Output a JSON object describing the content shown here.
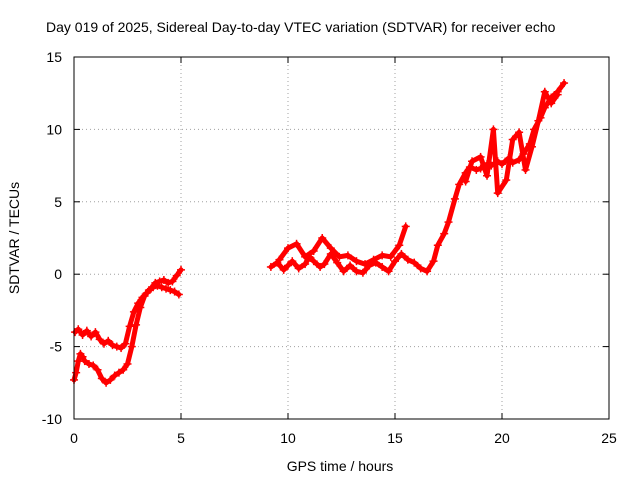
{
  "chart_data": {
    "type": "scatter",
    "title": "Day 019 of 2025, Sidereal Day-to-day VTEC variation (SDTVAR) for receiver echo",
    "xlabel": "GPS time / hours",
    "ylabel": "SDTVAR / TECUs",
    "xlim": [
      0,
      25
    ],
    "ylim": [
      -10,
      15
    ],
    "xticks": [
      0,
      5,
      10,
      15,
      20,
      25
    ],
    "yticks": [
      -10,
      -5,
      0,
      5,
      10,
      15
    ],
    "x_tick_labels": [
      "0",
      "5",
      "10",
      "15",
      "20",
      "25"
    ],
    "y_tick_labels": [
      "-10",
      "-5",
      "0",
      "5",
      "10",
      "15"
    ],
    "grid": true,
    "marker": "+",
    "color": "#ff0000",
    "series": [
      {
        "name": "segment-1-lower",
        "x": [
          0.0,
          0.1,
          0.2,
          0.3,
          0.4,
          0.5,
          0.7,
          0.9,
          1.1,
          1.3,
          1.5,
          1.7,
          1.9,
          2.1,
          2.3,
          2.5,
          2.7,
          2.9,
          3.1,
          3.3,
          3.5,
          3.7,
          3.9,
          4.1,
          4.3,
          4.5,
          4.7,
          4.9
        ],
        "y": [
          -7.3,
          -6.8,
          -6.0,
          -5.5,
          -5.7,
          -6.0,
          -6.2,
          -6.3,
          -6.6,
          -7.2,
          -7.5,
          -7.3,
          -7.0,
          -6.8,
          -6.6,
          -6.2,
          -5.0,
          -3.5,
          -2.3,
          -1.5,
          -1.1,
          -0.9,
          -0.8,
          -0.9,
          -1.0,
          -1.1,
          -1.2,
          -1.4
        ]
      },
      {
        "name": "segment-1-upper",
        "x": [
          0.05,
          0.2,
          0.4,
          0.6,
          0.8,
          1.0,
          1.2,
          1.4,
          1.6,
          1.8,
          2.0,
          2.2,
          2.4,
          2.6,
          2.8,
          3.0,
          3.2,
          3.4,
          3.6,
          3.8,
          4.0,
          4.2,
          4.4,
          4.6,
          4.8,
          5.0
        ],
        "y": [
          -4.0,
          -3.8,
          -4.2,
          -3.9,
          -4.3,
          -4.0,
          -4.5,
          -4.8,
          -4.6,
          -4.9,
          -5.0,
          -5.1,
          -4.8,
          -3.6,
          -2.6,
          -2.0,
          -1.6,
          -1.3,
          -1.0,
          -0.6,
          -0.5,
          -0.4,
          -0.6,
          -0.5,
          -0.1,
          0.3
        ]
      },
      {
        "name": "segment-2",
        "x": [
          9.2,
          9.5,
          9.8,
          10.0,
          10.2,
          10.5,
          10.8,
          11.0,
          11.2,
          11.5,
          11.7,
          12.0,
          12.3,
          12.6,
          12.9,
          13.2,
          13.5,
          13.8,
          14.1,
          14.4,
          14.7,
          15.0,
          15.3,
          15.6,
          15.9,
          16.2,
          16.5,
          16.8,
          17.0,
          17.3,
          17.5,
          17.8,
          18.0,
          18.3,
          18.5,
          18.8,
          19.0,
          19.3,
          19.5,
          19.8,
          20.0,
          20.3,
          20.5,
          20.8,
          21.0,
          21.3,
          21.5,
          21.8,
          22.0,
          22.3,
          22.6,
          22.9
        ],
        "y": [
          0.5,
          0.8,
          0.3,
          0.6,
          0.9,
          0.4,
          0.7,
          1.2,
          0.9,
          0.5,
          0.7,
          1.4,
          0.8,
          0.2,
          0.6,
          0.2,
          0.1,
          0.6,
          0.8,
          0.5,
          0.2,
          0.9,
          1.4,
          1.0,
          0.8,
          0.4,
          0.2,
          0.9,
          2.0,
          2.8,
          3.6,
          5.2,
          6.2,
          7.0,
          7.4,
          7.2,
          7.3,
          7.6,
          7.5,
          7.8,
          7.6,
          8.0,
          7.7,
          7.9,
          8.3,
          9.0,
          10.0,
          10.8,
          11.5,
          12.2,
          12.6,
          13.2
        ]
      },
      {
        "name": "segment-2-upper",
        "x": [
          9.6,
          10.0,
          10.4,
          10.8,
          11.2,
          11.6,
          12.0,
          12.4,
          12.8,
          13.2,
          13.6,
          14.0,
          14.4,
          14.8,
          15.2,
          15.5
        ],
        "y": [
          1.0,
          1.8,
          2.1,
          1.2,
          1.6,
          2.5,
          1.8,
          1.2,
          1.3,
          0.9,
          0.7,
          1.0,
          1.3,
          1.2,
          2.0,
          3.3
        ]
      },
      {
        "name": "segment-2-scatter",
        "x": [
          18.3,
          18.6,
          19.0,
          19.3,
          19.6,
          19.8,
          20.2,
          20.5,
          20.8,
          21.1,
          21.4,
          21.7,
          22.0,
          22.3,
          22.6
        ],
        "y": [
          6.4,
          7.8,
          8.1,
          6.8,
          10.0,
          5.6,
          6.5,
          9.3,
          9.8,
          7.2,
          8.8,
          10.6,
          12.6,
          11.8,
          12.4
        ]
      }
    ]
  }
}
